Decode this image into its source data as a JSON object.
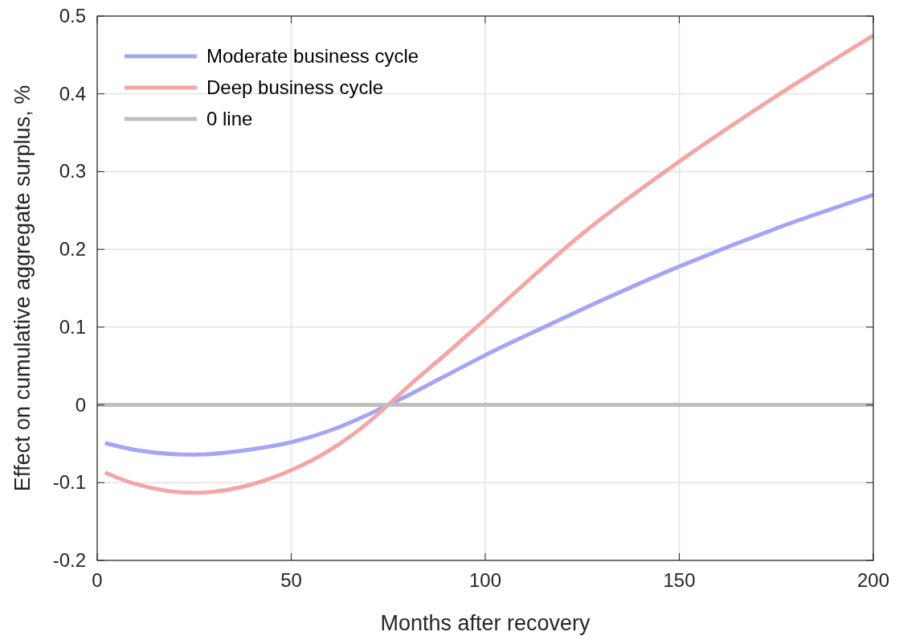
{
  "chart_data": {
    "type": "line",
    "xlabel": "Months after recovery",
    "ylabel": "Effect on cumulative aggregate surplus, %",
    "xlim": [
      0,
      200
    ],
    "xticks": [
      0,
      50,
      100,
      150,
      200
    ],
    "ylim": [
      -0.2,
      0.5
    ],
    "yticks": [
      -0.2,
      -0.1,
      0,
      0.1,
      0.2,
      0.3,
      0.4,
      0.5
    ],
    "grid": true,
    "legend": "top left",
    "line_style": "solid",
    "series": [
      {
        "name": "Moderate business cycle",
        "color": "#a5a5f5",
        "x": [
          2,
          10,
          25,
          40,
          50,
          60,
          70,
          75,
          80,
          90,
          100,
          110,
          125,
          150,
          175,
          200
        ],
        "values": [
          -0.049,
          -0.058,
          -0.064,
          -0.057,
          -0.048,
          -0.033,
          -0.012,
          0.0,
          0.012,
          0.038,
          0.064,
          0.088,
          0.123,
          0.178,
          0.227,
          0.27
        ]
      },
      {
        "name": "Deep business cycle",
        "color": "#f4a6a6",
        "x": [
          2,
          10,
          25,
          40,
          50,
          60,
          70,
          75,
          80,
          90,
          100,
          110,
          125,
          150,
          175,
          200
        ],
        "values": [
          -0.087,
          -0.102,
          -0.113,
          -0.102,
          -0.084,
          -0.058,
          -0.022,
          0.0,
          0.023,
          0.066,
          0.11,
          0.155,
          0.22,
          0.313,
          0.397,
          0.475
        ]
      },
      {
        "name": "0 line",
        "color": "#bfbfbf",
        "x": [
          0,
          200
        ],
        "values": [
          0,
          0
        ]
      }
    ]
  }
}
